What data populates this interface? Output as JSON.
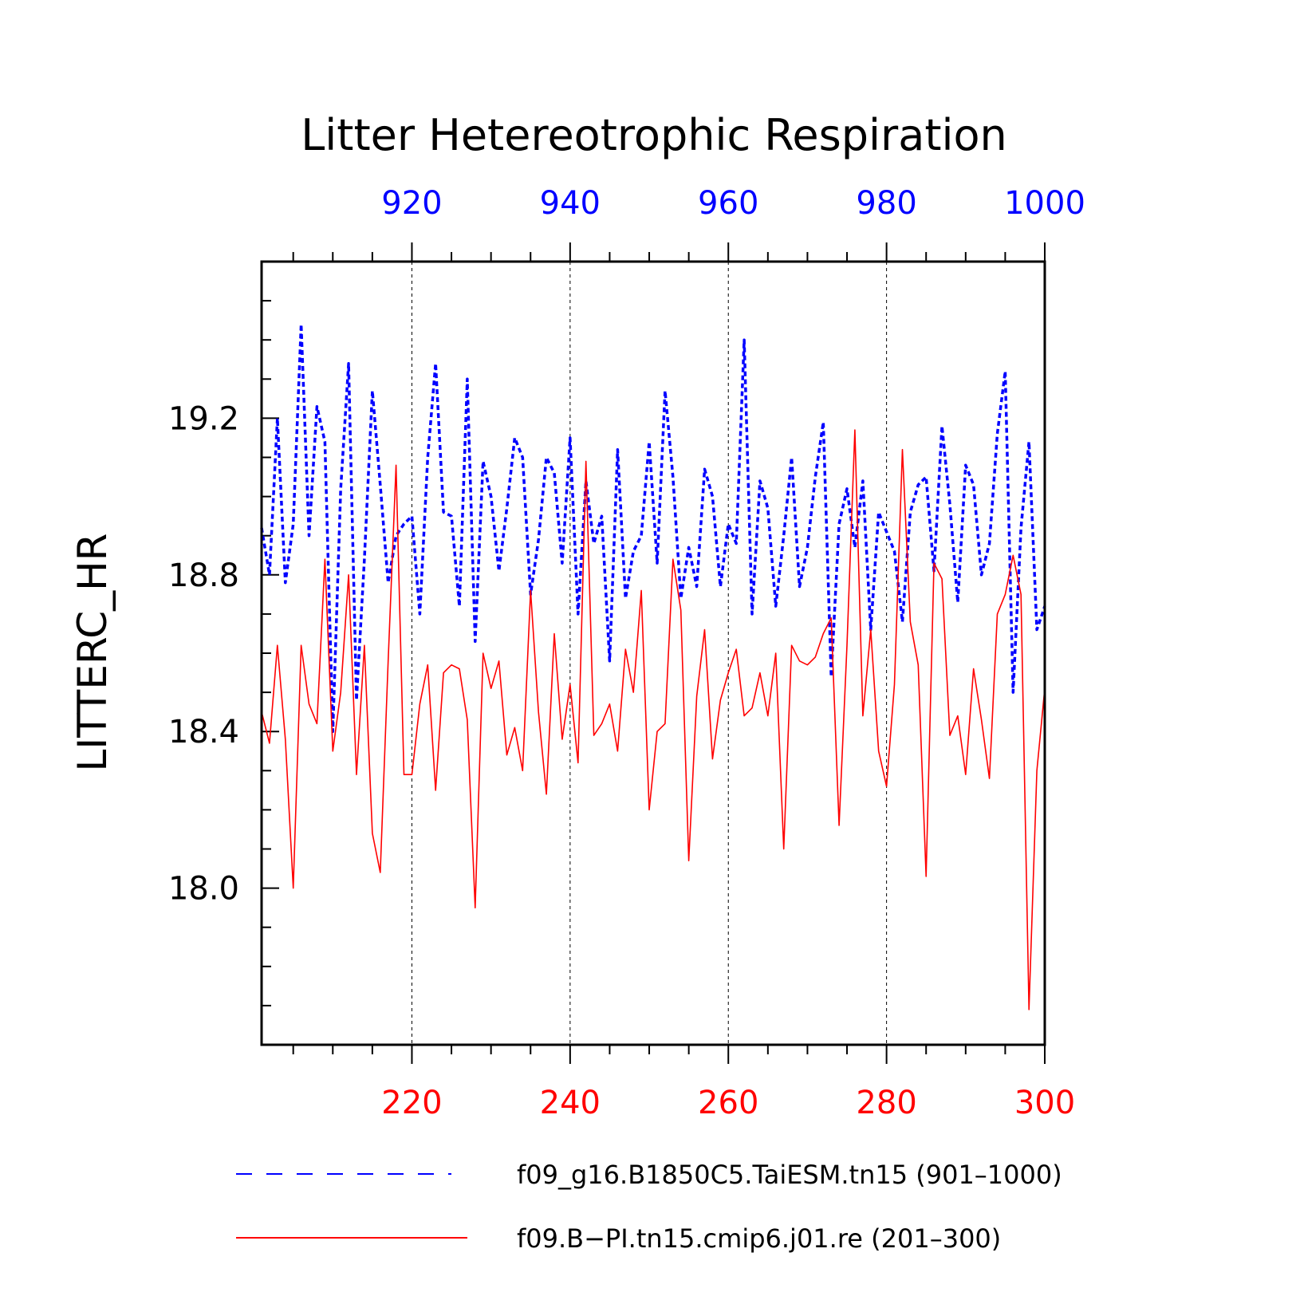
{
  "chart_data": {
    "type": "line",
    "title": "Litter Hetereotrophic Respiration",
    "ylabel": "LITTERC_HR",
    "ylim": [
      17.6,
      19.6
    ],
    "y_ticks": [
      "18.0",
      "18.4",
      "18.8",
      "19.2"
    ],
    "y_tick_values": [
      18.0,
      18.4,
      18.8,
      19.2
    ],
    "grid": "vertical dashed lines at labeled x ticks",
    "legend_position": "bottom",
    "axes": {
      "top": {
        "range": [
          901,
          1000
        ],
        "ticks": [
          920,
          940,
          960,
          980,
          1000
        ],
        "color": "#0000ff"
      },
      "bottom": {
        "range": [
          201,
          300
        ],
        "ticks": [
          220,
          240,
          260,
          280,
          300
        ],
        "color": "#ff0000"
      }
    },
    "series": [
      {
        "name": "f09_g16.B1850C5.TaiESM.tn15 (901–1000)",
        "axis": "top",
        "color": "#0000ff",
        "style": "dashed",
        "x_start": 901,
        "values": [
          18.92,
          18.8,
          19.2,
          18.78,
          18.93,
          19.44,
          18.9,
          19.23,
          19.14,
          18.4,
          19.02,
          19.34,
          18.48,
          18.84,
          19.27,
          19.03,
          18.78,
          18.9,
          18.93,
          18.95,
          18.7,
          19.1,
          19.34,
          18.96,
          18.95,
          18.72,
          19.3,
          18.63,
          19.09,
          19.0,
          18.81,
          18.97,
          19.15,
          19.1,
          18.75,
          18.89,
          19.1,
          19.06,
          18.83,
          19.15,
          18.7,
          19.04,
          18.88,
          18.95,
          18.58,
          19.12,
          18.74,
          18.86,
          18.9,
          19.14,
          18.83,
          19.27,
          19.05,
          18.74,
          18.87,
          18.77,
          19.07,
          19.0,
          18.77,
          18.93,
          18.88,
          19.4,
          18.7,
          19.04,
          18.97,
          18.72,
          18.9,
          19.1,
          18.77,
          18.87,
          19.05,
          19.19,
          18.54,
          18.93,
          19.02,
          18.87,
          19.04,
          18.66,
          18.96,
          18.91,
          18.86,
          18.68,
          18.96,
          19.03,
          19.05,
          18.81,
          19.18,
          18.98,
          18.73,
          19.08,
          19.03,
          18.8,
          18.88,
          19.16,
          19.32,
          18.5,
          18.92,
          19.14,
          18.66,
          18.72
        ]
      },
      {
        "name": "f09.B−PI.tn15.cmip6.j01.re (201–300)",
        "axis": "bottom",
        "color": "#ff0000",
        "style": "solid",
        "x_start": 201,
        "values": [
          18.45,
          18.37,
          18.62,
          18.38,
          18.0,
          18.62,
          18.47,
          18.42,
          18.84,
          18.35,
          18.5,
          18.8,
          18.29,
          18.62,
          18.14,
          18.04,
          18.58,
          19.08,
          18.29,
          18.29,
          18.47,
          18.57,
          18.25,
          18.55,
          18.57,
          18.56,
          18.43,
          17.95,
          18.6,
          18.51,
          18.58,
          18.34,
          18.41,
          18.3,
          18.76,
          18.45,
          18.24,
          18.65,
          18.38,
          18.52,
          18.32,
          19.09,
          18.39,
          18.42,
          18.47,
          18.35,
          18.61,
          18.5,
          18.76,
          18.2,
          18.4,
          18.42,
          18.84,
          18.71,
          18.07,
          18.49,
          18.66,
          18.33,
          18.48,
          18.55,
          18.61,
          18.44,
          18.46,
          18.55,
          18.44,
          18.6,
          18.1,
          18.62,
          18.58,
          18.57,
          18.59,
          18.65,
          18.69,
          18.16,
          18.62,
          19.17,
          18.44,
          18.66,
          18.35,
          18.26,
          18.52,
          19.12,
          18.68,
          18.57,
          18.03,
          18.83,
          18.79,
          18.39,
          18.44,
          18.29,
          18.56,
          18.43,
          18.28,
          18.7,
          18.75,
          18.85,
          18.75,
          17.69,
          18.3,
          18.51
        ]
      }
    ]
  }
}
